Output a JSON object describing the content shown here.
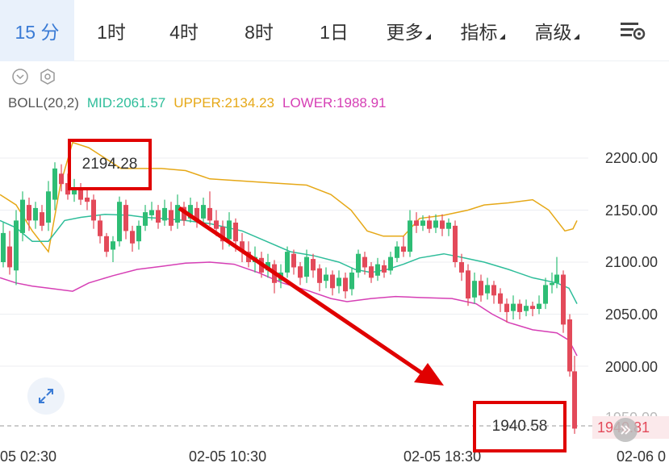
{
  "toolbar": {
    "tabs": [
      {
        "label": "15 分",
        "active": true
      },
      {
        "label": "1时"
      },
      {
        "label": "4时"
      },
      {
        "label": "8时"
      },
      {
        "label": "1日"
      },
      {
        "label": "更多",
        "dropdown": true
      },
      {
        "label": "指标",
        "dropdown": true
      },
      {
        "label": "高级",
        "dropdown": true
      }
    ],
    "settings_icon": "chart-settings-icon"
  },
  "indicator": {
    "name": "BOLL(20,2)",
    "mid": "MID:2061.57",
    "upper": "UPPER:2134.23",
    "lower": "LOWER:1988.91",
    "colors": {
      "mid": "#2ebd9a",
      "upper": "#e6a817",
      "lower": "#d63fb5"
    }
  },
  "price_axis": [
    "2200.00",
    "2150.00",
    "2100.00",
    "2050.00",
    "2000.00",
    "1950.00"
  ],
  "time_axis": [
    "05 02:30",
    "02-05 10:30",
    "02-05 18:30",
    "02-06 0"
  ],
  "last_price": "1940.81",
  "annotations": {
    "high_box": "2194.28",
    "low_box": "1940.58"
  },
  "colors": {
    "up": "#2ebd75",
    "down": "#e34a5a",
    "accent": "#3a7bd5",
    "annotation": "#e00000"
  }
}
